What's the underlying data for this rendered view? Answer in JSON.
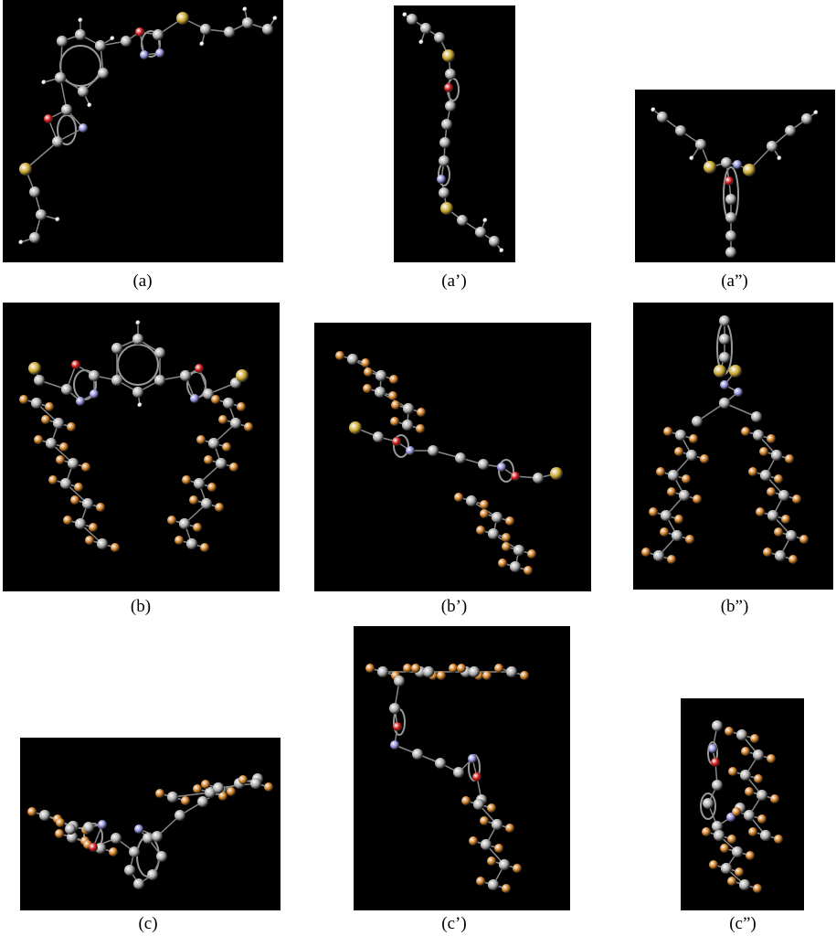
{
  "figure": {
    "panels": [
      {
        "id": "a",
        "label": "(a)",
        "content": "molecule-short-chain"
      },
      {
        "id": "a1",
        "label": "(a’)",
        "content": "molecule-short-chain"
      },
      {
        "id": "a2",
        "label": "(a”)",
        "content": "molecule-short-chain"
      },
      {
        "id": "b",
        "label": "(b)",
        "content": "molecule-fluorinated-chain"
      },
      {
        "id": "b1",
        "label": "(b’)",
        "content": "molecule-fluorinated-chain"
      },
      {
        "id": "b2",
        "label": "(b”)",
        "content": "molecule-fluorinated-chain"
      },
      {
        "id": "c",
        "label": "(c)",
        "content": "molecule-fluorinated-chain"
      },
      {
        "id": "c1",
        "label": "(c’)",
        "content": "molecule-fluorinated-chain"
      },
      {
        "id": "c2",
        "label": "(c”)",
        "content": "molecule-fluorinated-chain"
      }
    ],
    "atom_colors": {
      "C": "#a8a8a8",
      "H": "#f0f0f0",
      "F": "#d07a1c",
      "S": "#c9a52a",
      "O": "#d01010",
      "N": "#8a8ad8"
    },
    "background": "#000000"
  }
}
